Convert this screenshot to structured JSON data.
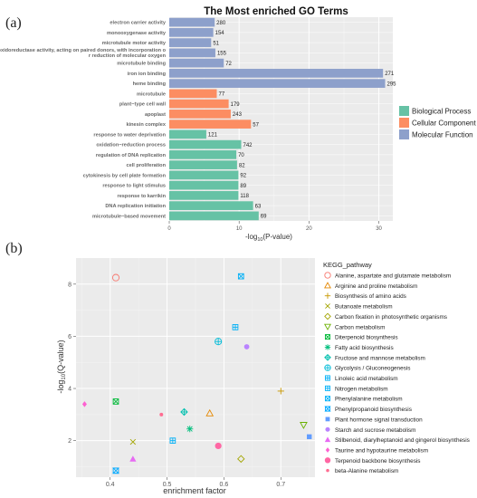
{
  "panel_a_label": "(a)",
  "panel_b_label": "(b)",
  "chart_data": [
    {
      "type": "bar",
      "orientation": "horizontal",
      "title": "The Most enriched GO Terms",
      "xlabel_main": "-log",
      "xlabel_sub": "10",
      "xlabel_tail": "(P-value)",
      "xlim": [
        0,
        32
      ],
      "xticks": [
        0,
        10,
        20,
        30
      ],
      "grid": true,
      "legend_position": "right",
      "series_meta": [
        {
          "name": "Biological Process",
          "color": "#66c2a5"
        },
        {
          "name": "Cellular Component",
          "color": "#fc8d62"
        },
        {
          "name": "Molecular Function",
          "color": "#8da0cb"
        }
      ],
      "bars": [
        {
          "label": "electron carrier activity",
          "value": 6.5,
          "count": "280",
          "group": 2
        },
        {
          "label": "monooxygenase activity",
          "value": 6.3,
          "count": "154",
          "group": 2
        },
        {
          "label": "microtubule motor activity",
          "value": 6.0,
          "count": "51",
          "group": 2
        },
        {
          "label": "oxidoreductase activity, acting on paired donors, with incorporation o\nr reduction of molecular oxygen",
          "value": 6.6,
          "count": "155",
          "group": 2
        },
        {
          "label": "microtubule binding",
          "value": 7.8,
          "count": "72",
          "group": 2
        },
        {
          "label": "iron ion binding",
          "value": 30.6,
          "count": "271",
          "group": 2
        },
        {
          "label": "heme binding",
          "value": 30.9,
          "count": "295",
          "group": 2
        },
        {
          "label": "microtubule",
          "value": 6.8,
          "count": "77",
          "group": 1
        },
        {
          "label": "plant−type cell wall",
          "value": 8.5,
          "count": "179",
          "group": 1
        },
        {
          "label": "apoplast",
          "value": 8.8,
          "count": "243",
          "group": 1
        },
        {
          "label": "kinesin complex",
          "value": 11.7,
          "count": "57",
          "group": 1
        },
        {
          "label": "response to water deprivation",
          "value": 5.3,
          "count": "121",
          "group": 0
        },
        {
          "label": "oxidation−reduction process",
          "value": 10.3,
          "count": "742",
          "group": 0
        },
        {
          "label": "regulation of DNA replication",
          "value": 9.6,
          "count": "70",
          "group": 0
        },
        {
          "label": "cell proliferation",
          "value": 9.7,
          "count": "82",
          "group": 0
        },
        {
          "label": "cytokinesis by cell plate formation",
          "value": 9.9,
          "count": "92",
          "group": 0
        },
        {
          "label": "response to light stimulus",
          "value": 9.9,
          "count": "89",
          "group": 0
        },
        {
          "label": "response to karrikin",
          "value": 9.9,
          "count": "118",
          "group": 0
        },
        {
          "label": "DNA replication initiation",
          "value": 12.0,
          "count": "63",
          "group": 0
        },
        {
          "label": "microtubule−based movement",
          "value": 12.8,
          "count": "69",
          "group": 0
        }
      ]
    },
    {
      "type": "scatter",
      "xlabel": "enrichment factor",
      "ylabel_main": "-log",
      "ylabel_sub": "10",
      "ylabel_tail": "(Q-value)",
      "xlim": [
        0.34,
        0.76
      ],
      "ylim": [
        0.6,
        9.0
      ],
      "xticks": [
        "0.4",
        "0.5",
        "0.6",
        "0.7"
      ],
      "yticks": [
        "2",
        "4",
        "6",
        "8"
      ],
      "grid": true,
      "legend_position": "right",
      "legend_title": "KEGG_pathway",
      "series": [
        {
          "name": "Alanine, aspartate and glutamate metabolism",
          "color": "#f8766d",
          "marker": "circle-open",
          "x": 0.41,
          "y": 8.25
        },
        {
          "name": "Arginine and proline metabolism",
          "color": "#e58700",
          "marker": "triangle-open",
          "x": 0.575,
          "y": 3.05
        },
        {
          "name": "Biosynthesis of amino acids",
          "color": "#c99800",
          "marker": "plus",
          "x": 0.7,
          "y": 3.9
        },
        {
          "name": "Butanoate metabolism",
          "color": "#a3a500",
          "marker": "x",
          "x": 0.44,
          "y": 1.95
        },
        {
          "name": "Carbon fixation in photosynthetic organisms",
          "color": "#a3a500",
          "marker": "diamond-open",
          "x": 0.63,
          "y": 1.3
        },
        {
          "name": "Carbon metabolism",
          "color": "#6bb100",
          "marker": "triangle-down-open",
          "x": 0.74,
          "y": 2.6
        },
        {
          "name": "Diterpenoid biosynthesis",
          "color": "#00ba38",
          "marker": "square-x",
          "x": 0.41,
          "y": 3.5
        },
        {
          "name": "Fatty acid biosynthesis",
          "color": "#00bf7d",
          "marker": "asterisk",
          "x": 0.54,
          "y": 2.45
        },
        {
          "name": "Fructose and mannose metabolism",
          "color": "#00c0af",
          "marker": "diamond-plus",
          "x": 0.53,
          "y": 3.1
        },
        {
          "name": "Glycolysis / Gluconeogenesis",
          "color": "#00bcd8",
          "marker": "circle-plus",
          "x": 0.59,
          "y": 5.8
        },
        {
          "name": "Linoleic acid metabolism",
          "color": "#00b0f6",
          "marker": "square-plus",
          "x": 0.51,
          "y": 2.0
        },
        {
          "name": "Nitrogen metabolism",
          "color": "#00b0f6",
          "marker": "square-plus",
          "x": 0.62,
          "y": 6.35
        },
        {
          "name": "Phenylalanine metabolism",
          "color": "#00b0f6",
          "marker": "square-x",
          "x": 0.63,
          "y": 8.3
        },
        {
          "name": "Phenylpropanoid biosynthesis",
          "color": "#00a9ff",
          "marker": "hourglass",
          "x": 0.41,
          "y": 0.85
        },
        {
          "name": "Plant hormone signal transduction",
          "color": "#619cff",
          "marker": "square",
          "x": 0.75,
          "y": 2.15
        },
        {
          "name": "Starch and sucrose metabolism",
          "color": "#b983ff",
          "marker": "circle",
          "x": 0.64,
          "y": 5.6
        },
        {
          "name": "Stilbenoid, diarylheptanoid and gingerol biosynthesis",
          "color": "#e76bf3",
          "marker": "triangle",
          "x": 0.44,
          "y": 1.3
        },
        {
          "name": "Taurine and hypotaurine metabolism",
          "color": "#fd61d1",
          "marker": "diamond",
          "x": 0.355,
          "y": 3.4
        },
        {
          "name": "Terpenoid backbone biosynthesis",
          "color": "#ff67a4",
          "marker": "circle-large",
          "x": 0.59,
          "y": 1.8
        },
        {
          "name": "beta-Alanine metabolism",
          "color": "#ff6c91",
          "marker": "circle-small",
          "x": 0.49,
          "y": 3.0
        }
      ]
    }
  ]
}
